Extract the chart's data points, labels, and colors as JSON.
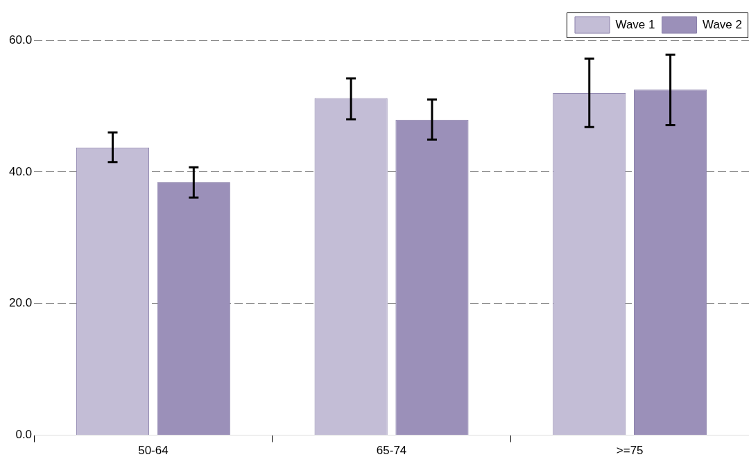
{
  "chart_data": {
    "type": "bar",
    "categories": [
      "50-64",
      "65-74",
      ">=75"
    ],
    "series": [
      {
        "name": "Wave 1",
        "color": "#c3bdd6",
        "values": [
          43.7,
          51.2,
          52.0
        ],
        "errors": [
          [
            41.5,
            46.0
          ],
          [
            48.0,
            54.2
          ],
          [
            46.8,
            57.2
          ]
        ]
      },
      {
        "name": "Wave 2",
        "color": "#9b90b9",
        "values": [
          38.4,
          47.9,
          52.5
        ],
        "errors": [
          [
            36.1,
            40.7
          ],
          [
            44.9,
            51.0
          ],
          [
            47.1,
            57.8
          ]
        ]
      }
    ],
    "ylim": [
      0,
      60
    ],
    "yticks": [
      {
        "value": 0,
        "label": "0.0"
      },
      {
        "value": 20,
        "label": "20.0"
      },
      {
        "value": 40,
        "label": "40.0"
      },
      {
        "value": 60,
        "label": "60.0"
      }
    ],
    "grid": "y",
    "legend": "top right"
  }
}
